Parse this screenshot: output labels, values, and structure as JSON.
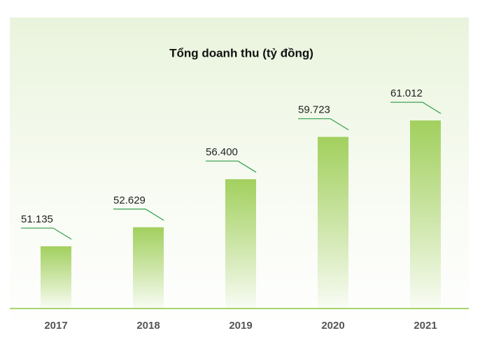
{
  "chart_data": {
    "type": "bar",
    "title": "Tổng doanh thu (tỷ đồng)",
    "categories": [
      "2017",
      "2018",
      "2019",
      "2020",
      "2021"
    ],
    "values": [
      51135,
      52629,
      56400,
      59723,
      61012
    ],
    "value_labels": [
      "51.135",
      "52.629",
      "56.400",
      "59.723",
      "61.012"
    ],
    "color": "#a2d05e",
    "ylim": [
      46250,
      63000
    ]
  }
}
